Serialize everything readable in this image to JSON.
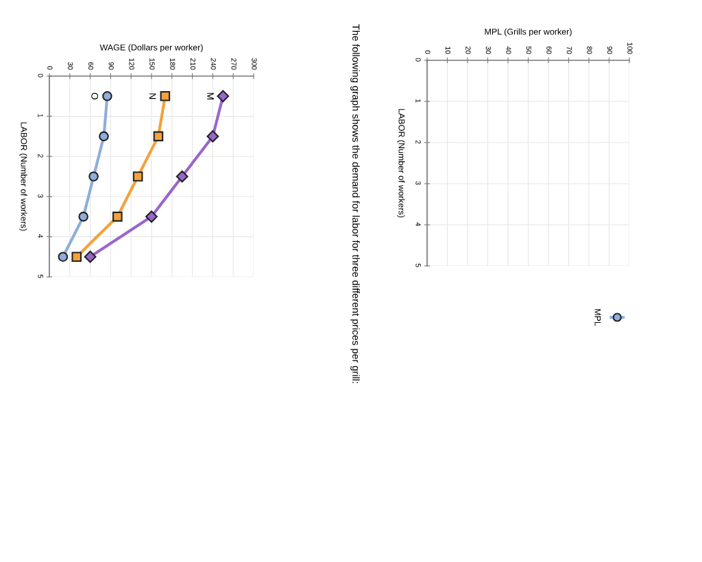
{
  "chart_data": [
    {
      "type": "line",
      "xlabel": "MPL (Grills per worker)",
      "ylabel": "LABOR (Number of workers)",
      "xlim": [
        0,
        100
      ],
      "xticks": [
        0,
        10,
        20,
        30,
        40,
        50,
        60,
        70,
        80,
        90,
        100
      ],
      "ylim": [
        5,
        0
      ],
      "yticks": [
        0,
        1,
        2,
        3,
        4,
        5
      ],
      "grid": true,
      "legend": "bottom right",
      "series": [
        {
          "name": "MPL",
          "color": "#8eaedb",
          "marker": "circle",
          "x": [
            null,
            null,
            null,
            null,
            null
          ],
          "values": [
            null,
            null,
            null,
            null,
            null
          ]
        }
      ]
    },
    {
      "type": "other",
      "title": "The following graph shows the demand for labor for three different prices per grill:"
    },
    {
      "type": "line",
      "xlabel": "WAGE (Dollars per worker)",
      "ylabel": "LABOR (Number of workers)",
      "xlim": [
        0,
        300
      ],
      "xticks": [
        0,
        30,
        60,
        90,
        120,
        150,
        180,
        210,
        240,
        270,
        300
      ],
      "ylim": [
        5,
        0
      ],
      "yticks": [
        0,
        1,
        2,
        3,
        4,
        5
      ],
      "grid": true,
      "series": [
        {
          "name": "M",
          "color": "#9966cc",
          "marker": "diamond",
          "x": [
            255,
            240,
            195,
            150,
            60
          ],
          "values": [
            0.5,
            1.5,
            2.5,
            3.5,
            4.5
          ]
        },
        {
          "name": "N",
          "color": "#f4a13c",
          "marker": "square",
          "x": [
            170,
            160,
            130,
            100,
            40
          ],
          "values": [
            0.5,
            1.5,
            2.5,
            3.5,
            4.5
          ]
        },
        {
          "name": "O",
          "color": "#8eaedb",
          "marker": "circle",
          "x": [
            85,
            80,
            65,
            50,
            20
          ],
          "values": [
            0.5,
            1.5,
            2.5,
            3.5,
            4.5
          ]
        }
      ]
    }
  ]
}
